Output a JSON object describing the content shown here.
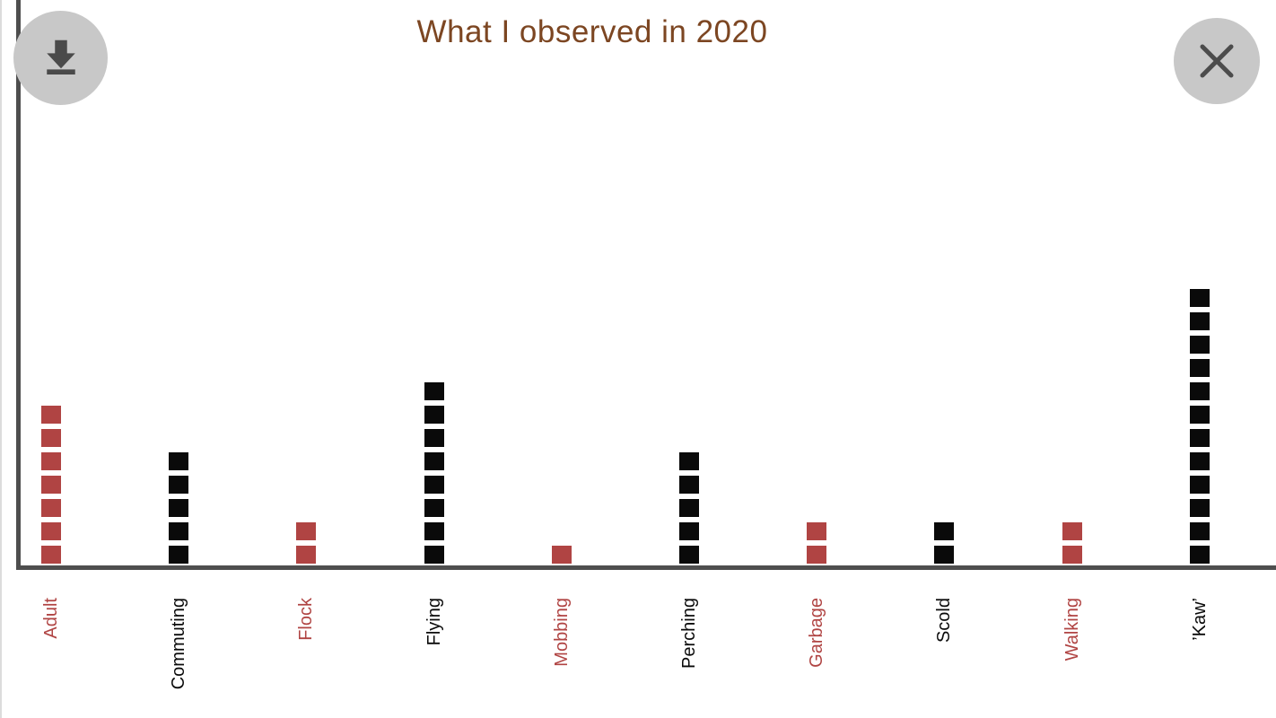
{
  "header": {
    "title": "What I observed in 2020"
  },
  "toolbar": {
    "download_icon": "download-icon",
    "close_icon": "close-icon"
  },
  "colors": {
    "title_text": "#7c4622",
    "axis": "#4e4e4e",
    "red_series": "#b04443",
    "black_series": "#0a0a0a",
    "button_background": "#c8c8c8",
    "button_icon": "#4a4a4a"
  },
  "chart_data": {
    "type": "bar",
    "subtype": "pictogram_waffle_stack",
    "title": "What I observed in 2020",
    "categories": [
      "Adult",
      "Commuting",
      "Flock",
      "Flying",
      "Mobbing",
      "Perching",
      "Garbage",
      "Scold",
      "Walking",
      "’Kaw’"
    ],
    "values": [
      7,
      5,
      2,
      8,
      1,
      5,
      2,
      2,
      2,
      12
    ],
    "category_colors": [
      "#b04443",
      "#0a0a0a",
      "#b04443",
      "#0a0a0a",
      "#b04443",
      "#0a0a0a",
      "#b04443",
      "#0a0a0a",
      "#b04443",
      "#0a0a0a"
    ],
    "unit_per_square": 1,
    "xlabel": "",
    "ylabel": "",
    "ylim": [
      0,
      12
    ],
    "grid": false,
    "legend": false,
    "tick_label_rotation_deg": 90
  }
}
